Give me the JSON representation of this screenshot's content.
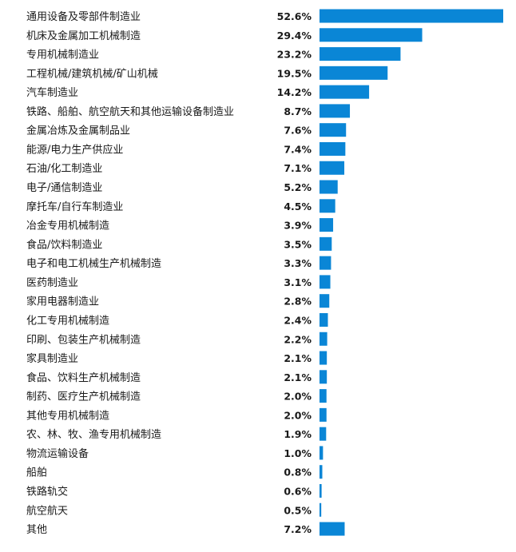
{
  "chart_data": {
    "type": "bar",
    "orientation": "horizontal",
    "title": "",
    "xlabel": "",
    "ylabel": "",
    "grid": false,
    "color": "#0a86d6",
    "value_suffix": "%",
    "categories": [
      "通用设备及零部件制造业",
      "机床及金属加工机械制造",
      "专用机械制造业",
      "工程机械/建筑机械/矿山机械",
      "汽车制造业",
      "铁路、船舶、航空航天和其他运输设备制造业",
      "金属冶炼及金属制品业",
      "能源/电力生产供应业",
      "石油/化工制造业",
      "电子/通信制造业",
      "摩托车/自行车制造业",
      "冶金专用机械制造",
      "食品/饮料制造业",
      "电子和电工机械生产机械制造",
      "医药制造业",
      "家用电器制造业",
      "化工专用机械制造",
      "印刷、包装生产机械制造",
      "家具制造业",
      "食品、饮料生产机械制造",
      "制药、医疗生产机械制造",
      "其他专用机械制造",
      "农、林、牧、渔专用机械制造",
      "物流运输设备",
      "船舶",
      "铁路轨交",
      "航空航天",
      "其他"
    ],
    "values": [
      52.6,
      29.4,
      23.2,
      19.5,
      14.2,
      8.7,
      7.6,
      7.4,
      7.1,
      5.2,
      4.5,
      3.9,
      3.5,
      3.3,
      3.1,
      2.8,
      2.4,
      2.2,
      2.1,
      2.1,
      2.0,
      2.0,
      1.9,
      1.0,
      0.8,
      0.6,
      0.5,
      7.2
    ],
    "value_labels": [
      "52.6%",
      "29.4%",
      "23.2%",
      "19.5%",
      "14.2%",
      "8.7%",
      "7.6%",
      "7.4%",
      "7.1%",
      "5.2%",
      "4.5%",
      "3.9%",
      "3.5%",
      "3.3%",
      "3.1%",
      "2.8%",
      "2.4%",
      "2.2%",
      "2.1%",
      "2.1%",
      "2.0%",
      "2.0%",
      "1.9%",
      "1.0%",
      "0.8%",
      "0.6%",
      "0.5%",
      "7.2%"
    ]
  }
}
